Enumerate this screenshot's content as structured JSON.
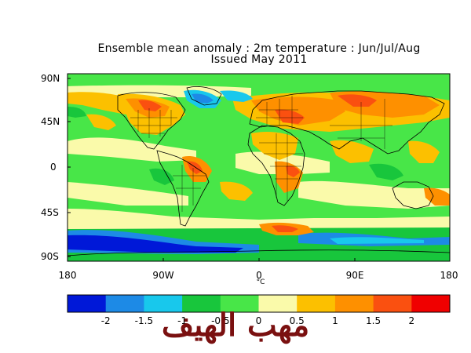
{
  "title": {
    "line1": "Ensemble mean anomaly : 2m temperature : Jun/Jul/Aug",
    "line2": "Issued May 2011"
  },
  "lat_labels": [
    "90N",
    "45N",
    "0",
    "45S",
    "90S"
  ],
  "lon_labels": [
    "180",
    "90W",
    "0",
    "90E",
    "180"
  ],
  "unit": "°C",
  "colorbar": {
    "ticks": [
      "-2",
      "-1.5",
      "-1",
      "-0.5",
      "0",
      "0.5",
      "1",
      "1.5",
      "2"
    ],
    "colors": [
      "#0018d8",
      "#1d8ae6",
      "#18c8ec",
      "#18c63c",
      "#48e648",
      "#fafaaa",
      "#fcc000",
      "#fe9000",
      "#fa5010",
      "#f00000"
    ]
  },
  "watermark": "مهب الهيف"
}
